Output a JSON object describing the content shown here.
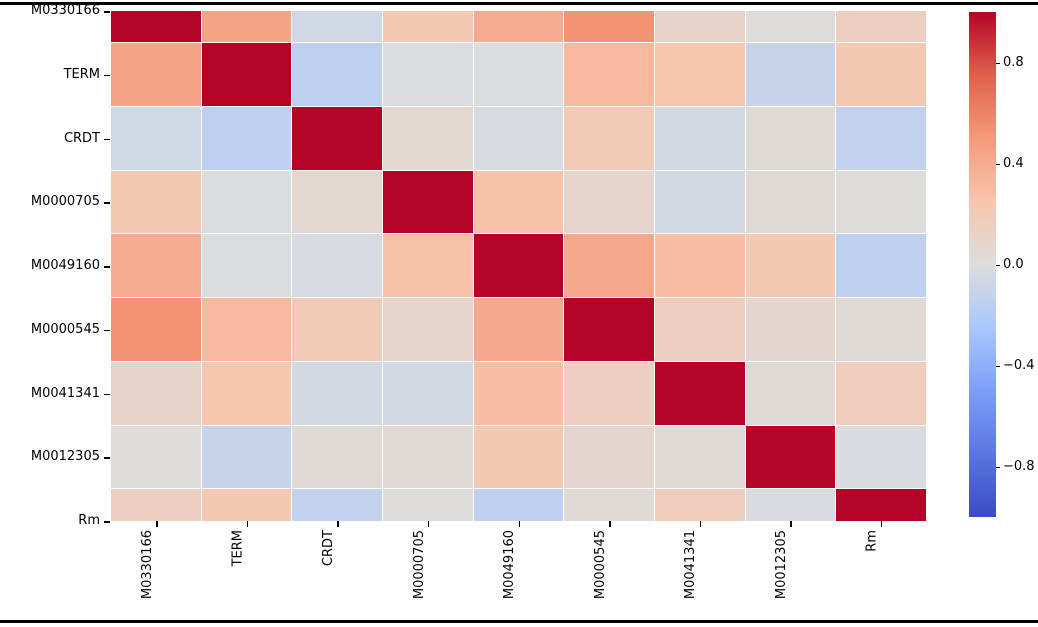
{
  "page": {
    "background": "#ffffff",
    "rule_color": "#000000",
    "text_color": "#000000"
  },
  "chart_data": {
    "type": "heatmap",
    "title": "",
    "xlabel": "",
    "ylabel": "",
    "labels": [
      "M0330166",
      "TERM",
      "CRDT",
      "M0000705",
      "M0049160",
      "M0000545",
      "M0041341",
      "M0012305",
      "Rm"
    ],
    "matrix": [
      [
        1.0,
        0.45,
        -0.06,
        0.22,
        0.4,
        0.53,
        0.1,
        0.01,
        0.15
      ],
      [
        0.45,
        1.0,
        -0.15,
        -0.01,
        -0.01,
        0.32,
        0.24,
        -0.11,
        0.22
      ],
      [
        -0.06,
        -0.15,
        1.0,
        0.06,
        -0.03,
        0.19,
        -0.05,
        0.03,
        -0.13
      ],
      [
        0.22,
        -0.01,
        0.06,
        1.0,
        0.27,
        0.08,
        -0.05,
        0.04,
        0.01
      ],
      [
        0.4,
        -0.01,
        -0.03,
        0.27,
        1.0,
        0.42,
        0.29,
        0.21,
        -0.14
      ],
      [
        0.53,
        0.32,
        0.19,
        0.08,
        0.42,
        1.0,
        0.15,
        0.07,
        0.03
      ],
      [
        0.1,
        0.24,
        -0.05,
        -0.05,
        0.29,
        0.15,
        1.0,
        0.04,
        0.17
      ],
      [
        0.01,
        -0.11,
        0.03,
        0.04,
        0.21,
        0.07,
        0.04,
        1.0,
        -0.02
      ],
      [
        0.15,
        0.22,
        -0.13,
        0.01,
        -0.14,
        0.03,
        0.17,
        -0.02,
        1.0
      ]
    ],
    "vmin": -1,
    "vmax": 1,
    "colormap_name": "coolwarm",
    "colormap_stops": [
      {
        "t": 0.0,
        "color": "#3b4cc0"
      },
      {
        "t": 0.125,
        "color": "#5977e3"
      },
      {
        "t": 0.25,
        "color": "#7b9ff9"
      },
      {
        "t": 0.375,
        "color": "#aac7fd"
      },
      {
        "t": 0.5,
        "color": "#dddddd"
      },
      {
        "t": 0.625,
        "color": "#f7c5ac"
      },
      {
        "t": 0.75,
        "color": "#f49a7b"
      },
      {
        "t": 0.875,
        "color": "#de614c"
      },
      {
        "t": 1.0,
        "color": "#b40426"
      }
    ],
    "colorbar": {
      "position": "right",
      "ticks": [
        {
          "label": "0.8",
          "value": 0.8
        },
        {
          "label": "0.4",
          "value": 0.4
        },
        {
          "label": "0.0",
          "value": 0.0
        },
        {
          "label": "−0.4",
          "value": -0.4
        },
        {
          "label": "−0.8",
          "value": -0.8
        }
      ]
    },
    "layout_hints": {
      "x_tick_rotation_deg": 90,
      "grid_lines": "thin white between cells",
      "first_last_row_half_height": true
    }
  }
}
